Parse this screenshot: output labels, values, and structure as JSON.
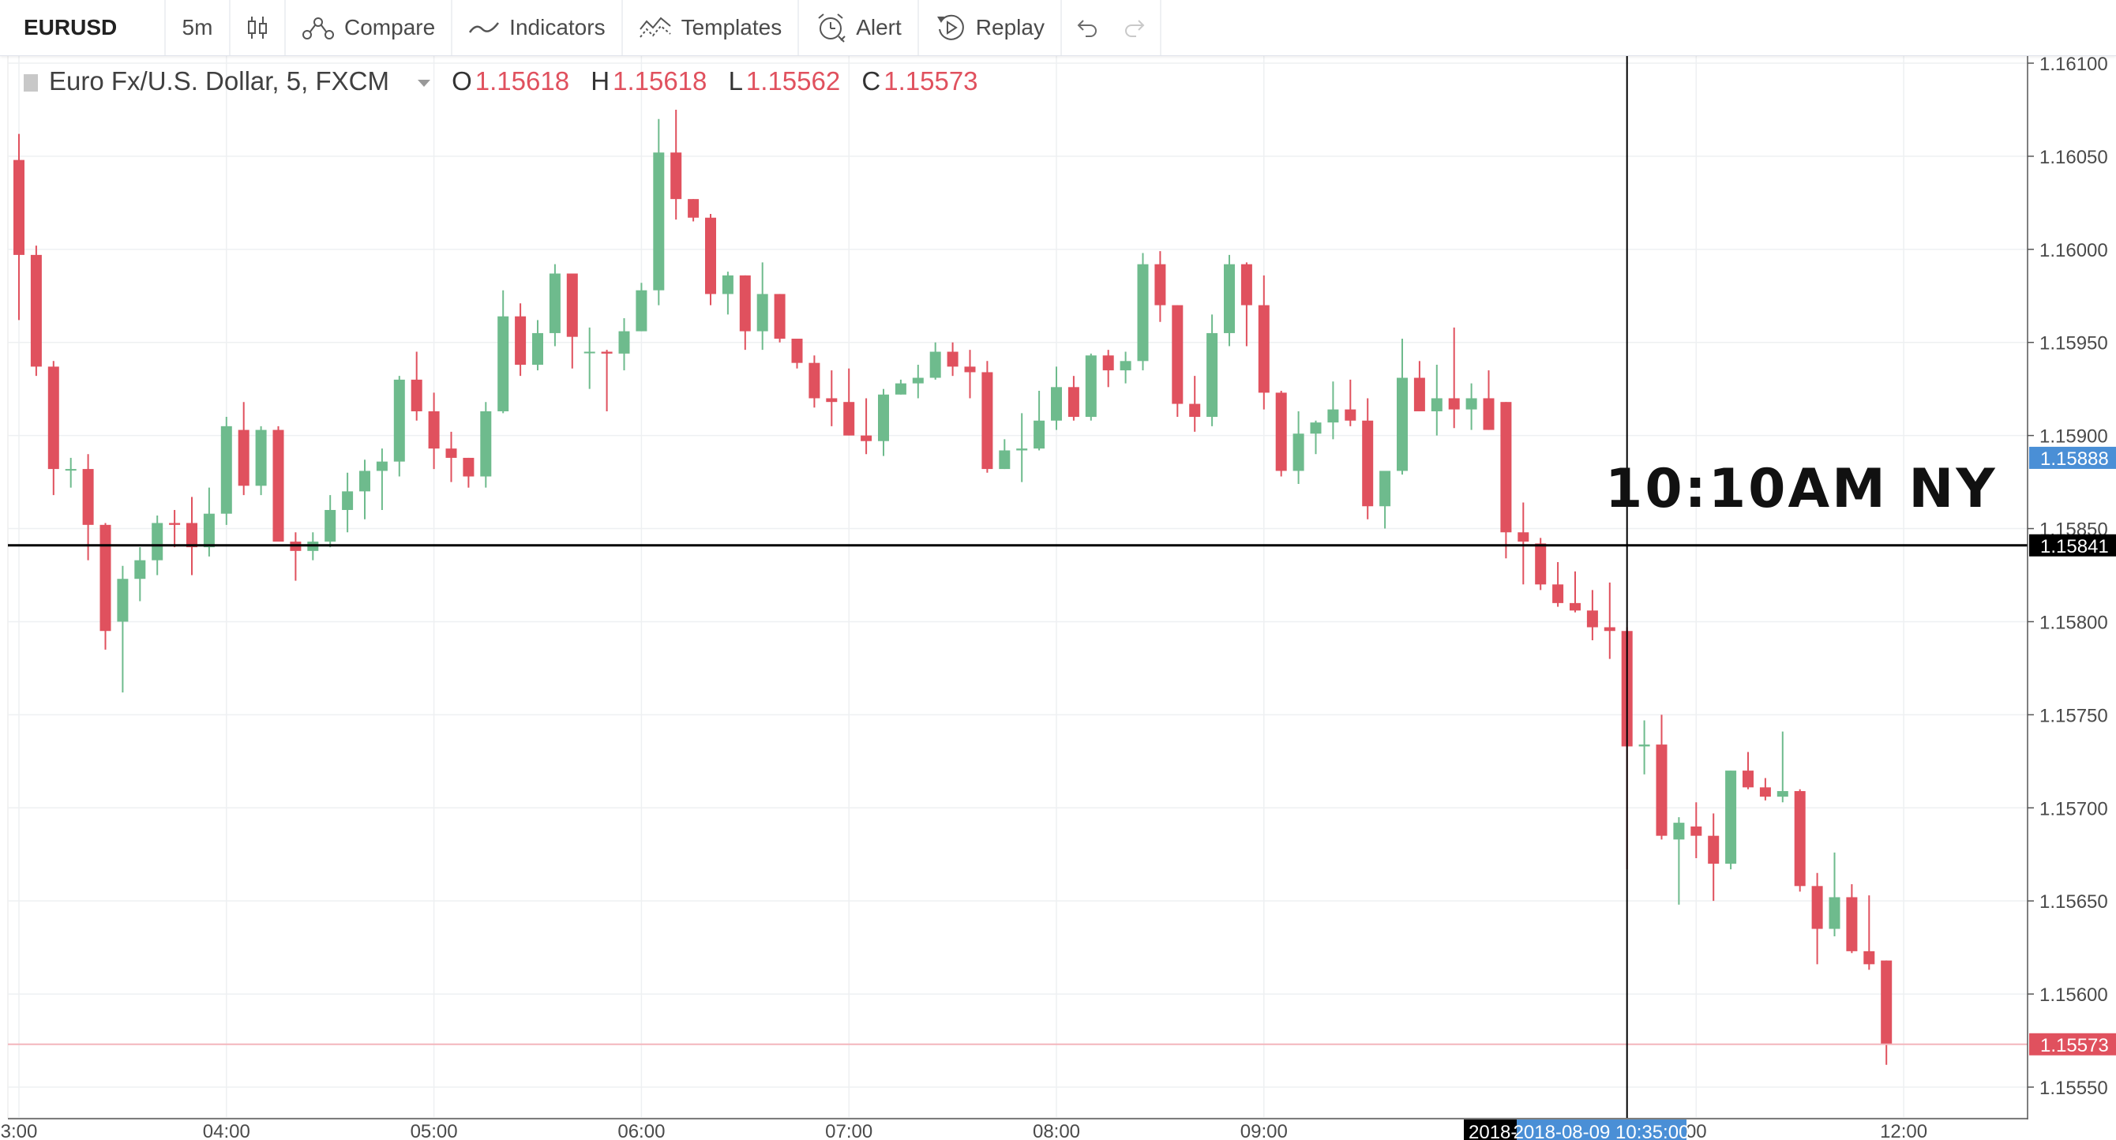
{
  "toolbar": {
    "symbol": "EURUSD",
    "interval": "5m",
    "compare_label": "Compare",
    "indicators_label": "Indicators",
    "templates_label": "Templates",
    "alert_label": "Alert",
    "replay_label": "Replay",
    "font_size": "32"
  },
  "legend": {
    "title": "Euro Fx/U.S. Dollar, 5, FXCM",
    "o_label": "O",
    "o_value": "1.15618",
    "h_label": "H",
    "h_value": "1.15618",
    "l_label": "L",
    "l_value": "1.15562",
    "c_label": "C",
    "c_value": "1.15573"
  },
  "colors": {
    "up": "#6ebb8d",
    "down": "#e0515e",
    "crosshair": "#000000",
    "last_price": "#e0515e",
    "label_blue": "#4a8fd6"
  },
  "chart_data": {
    "type": "candlestick",
    "symbol": "EURUSD",
    "ylim": [
      1.15535,
      1.1611
    ],
    "y_ticks": [
      "1.16100",
      "1.16050",
      "1.16000",
      "1.15950",
      "1.15900",
      "1.15850",
      "1.15800",
      "1.15750",
      "1.15700",
      "1.15650",
      "1.15600",
      "1.15550"
    ],
    "x_ticks": [
      {
        "label": "3:00",
        "i": 0
      },
      {
        "label": "04:00",
        "i": 12
      },
      {
        "label": "05:00",
        "i": 24
      },
      {
        "label": "06:00",
        "i": 36
      },
      {
        "label": "07:00",
        "i": 48
      },
      {
        "label": "08:00",
        "i": 60
      },
      {
        "label": "09:00",
        "i": 72
      },
      {
        "label": "00",
        "i": 97
      },
      {
        "label": "12:00",
        "i": 109
      }
    ],
    "candles": [
      [
        1.16048,
        1.16062,
        1.15962,
        1.15997
      ],
      [
        1.15997,
        1.16002,
        1.15932,
        1.15937
      ],
      [
        1.15937,
        1.1594,
        1.15868,
        1.15882
      ],
      [
        1.15882,
        1.15888,
        1.15872,
        1.15882
      ],
      [
        1.15882,
        1.1589,
        1.15833,
        1.15852
      ],
      [
        1.15852,
        1.15853,
        1.15785,
        1.15795
      ],
      [
        1.158,
        1.1583,
        1.15762,
        1.15823
      ],
      [
        1.15823,
        1.1584,
        1.15811,
        1.15833
      ],
      [
        1.15833,
        1.15857,
        1.15825,
        1.15853
      ],
      [
        1.15853,
        1.1586,
        1.1584,
        1.15852
      ],
      [
        1.15853,
        1.15867,
        1.15825,
        1.1584
      ],
      [
        1.1584,
        1.15872,
        1.15835,
        1.15858
      ],
      [
        1.15858,
        1.1591,
        1.15852,
        1.15905
      ],
      [
        1.15903,
        1.15918,
        1.15868,
        1.15873
      ],
      [
        1.15873,
        1.15905,
        1.15868,
        1.15903
      ],
      [
        1.15903,
        1.15905,
        1.15843,
        1.15843
      ],
      [
        1.15843,
        1.15848,
        1.15822,
        1.15838
      ],
      [
        1.15838,
        1.15848,
        1.15833,
        1.15843
      ],
      [
        1.15843,
        1.15868,
        1.1584,
        1.1586
      ],
      [
        1.1586,
        1.1588,
        1.15848,
        1.1587
      ],
      [
        1.1587,
        1.15887,
        1.15855,
        1.15881
      ],
      [
        1.15881,
        1.15893,
        1.1586,
        1.15886
      ],
      [
        1.15886,
        1.15932,
        1.15878,
        1.1593
      ],
      [
        1.1593,
        1.15945,
        1.15908,
        1.15913
      ],
      [
        1.15913,
        1.15923,
        1.15882,
        1.15893
      ],
      [
        1.15893,
        1.15902,
        1.15875,
        1.15888
      ],
      [
        1.15888,
        1.15888,
        1.15872,
        1.15878
      ],
      [
        1.15878,
        1.15918,
        1.15872,
        1.15913
      ],
      [
        1.15913,
        1.15978,
        1.15912,
        1.15964
      ],
      [
        1.15964,
        1.15971,
        1.15932,
        1.15938
      ],
      [
        1.15938,
        1.15962,
        1.15935,
        1.15955
      ],
      [
        1.15955,
        1.15992,
        1.15948,
        1.15987
      ],
      [
        1.15987,
        1.15987,
        1.15936,
        1.15953
      ],
      [
        1.15945,
        1.15958,
        1.15925,
        1.15945
      ],
      [
        1.15945,
        1.15946,
        1.15913,
        1.15944
      ],
      [
        1.15944,
        1.15963,
        1.15935,
        1.15956
      ],
      [
        1.15956,
        1.15982,
        1.15956,
        1.15978
      ],
      [
        1.15978,
        1.1607,
        1.1597,
        1.16052
      ],
      [
        1.16052,
        1.16075,
        1.16016,
        1.16027
      ],
      [
        1.16027,
        1.16027,
        1.16015,
        1.16017
      ],
      [
        1.16017,
        1.16019,
        1.1597,
        1.15976
      ],
      [
        1.15976,
        1.15988,
        1.15965,
        1.15986
      ],
      [
        1.15986,
        1.15986,
        1.15946,
        1.15956
      ],
      [
        1.15956,
        1.15993,
        1.15946,
        1.15976
      ],
      [
        1.15976,
        1.15976,
        1.1595,
        1.15952
      ],
      [
        1.15952,
        1.15952,
        1.15936,
        1.15939
      ],
      [
        1.15939,
        1.15943,
        1.15915,
        1.1592
      ],
      [
        1.1592,
        1.15935,
        1.15905,
        1.15918
      ],
      [
        1.15918,
        1.15936,
        1.159,
        1.159
      ],
      [
        1.159,
        1.1592,
        1.1589,
        1.15897
      ],
      [
        1.15897,
        1.15925,
        1.15889,
        1.15922
      ],
      [
        1.15922,
        1.1593,
        1.15922,
        1.15928
      ],
      [
        1.15928,
        1.15938,
        1.1592,
        1.15931
      ],
      [
        1.15931,
        1.1595,
        1.1593,
        1.15945
      ],
      [
        1.15945,
        1.1595,
        1.15932,
        1.15937
      ],
      [
        1.15937,
        1.15946,
        1.1592,
        1.15934
      ],
      [
        1.15934,
        1.1594,
        1.1588,
        1.15882
      ],
      [
        1.15882,
        1.15898,
        1.15882,
        1.15892
      ],
      [
        1.15892,
        1.15912,
        1.15875,
        1.15893
      ],
      [
        1.15893,
        1.15924,
        1.15892,
        1.15908
      ],
      [
        1.15908,
        1.15937,
        1.15903,
        1.15926
      ],
      [
        1.15926,
        1.15932,
        1.15908,
        1.1591
      ],
      [
        1.1591,
        1.15944,
        1.15908,
        1.15943
      ],
      [
        1.15943,
        1.15946,
        1.15926,
        1.15935
      ],
      [
        1.15935,
        1.15945,
        1.15928,
        1.1594
      ],
      [
        1.1594,
        1.15998,
        1.15935,
        1.15992
      ],
      [
        1.15992,
        1.15999,
        1.15961,
        1.1597
      ],
      [
        1.1597,
        1.1597,
        1.1591,
        1.15917
      ],
      [
        1.15917,
        1.15932,
        1.15902,
        1.1591
      ],
      [
        1.1591,
        1.15965,
        1.15905,
        1.15955
      ],
      [
        1.15955,
        1.15997,
        1.15948,
        1.15992
      ],
      [
        1.15992,
        1.15993,
        1.15948,
        1.1597
      ],
      [
        1.1597,
        1.15986,
        1.15914,
        1.15923
      ],
      [
        1.15923,
        1.15924,
        1.15878,
        1.15881
      ],
      [
        1.15881,
        1.15913,
        1.15874,
        1.15901
      ],
      [
        1.15901,
        1.15908,
        1.1589,
        1.15907
      ],
      [
        1.15907,
        1.15929,
        1.15898,
        1.15914
      ],
      [
        1.15914,
        1.1593,
        1.15905,
        1.15908
      ],
      [
        1.15908,
        1.1592,
        1.15855,
        1.15862
      ],
      [
        1.15862,
        1.1588,
        1.1585,
        1.15881
      ],
      [
        1.15881,
        1.15952,
        1.15879,
        1.15931
      ],
      [
        1.15931,
        1.1594,
        1.15913,
        1.15913
      ],
      [
        1.15913,
        1.15938,
        1.159,
        1.1592
      ],
      [
        1.1592,
        1.15958,
        1.15904,
        1.15914
      ],
      [
        1.15914,
        1.15928,
        1.15903,
        1.1592
      ],
      [
        1.1592,
        1.15935,
        1.15903,
        1.15903
      ],
      [
        1.15918,
        1.15918,
        1.15834,
        1.15848
      ],
      [
        1.15848,
        1.15864,
        1.1582,
        1.15843
      ],
      [
        1.15842,
        1.15845,
        1.15817,
        1.1582
      ],
      [
        1.1582,
        1.15832,
        1.15808,
        1.1581
      ],
      [
        1.1581,
        1.15827,
        1.15805,
        1.15806
      ],
      [
        1.15806,
        1.15817,
        1.1579,
        1.15797
      ],
      [
        1.15797,
        1.15821,
        1.1578,
        1.15795
      ],
      [
        1.15795,
        1.15797,
        1.15667,
        1.15733
      ],
      [
        1.15733,
        1.15747,
        1.15718,
        1.15734
      ],
      [
        1.15734,
        1.1575,
        1.15683,
        1.15685
      ],
      [
        1.15683,
        1.15695,
        1.15648,
        1.15692
      ],
      [
        1.1569,
        1.15703,
        1.15673,
        1.15685
      ],
      [
        1.15685,
        1.15697,
        1.1565,
        1.1567
      ],
      [
        1.1567,
        1.1572,
        1.15667,
        1.1572
      ],
      [
        1.1572,
        1.1573,
        1.1571,
        1.15711
      ],
      [
        1.15711,
        1.15716,
        1.15704,
        1.15706
      ],
      [
        1.15706,
        1.15741,
        1.15703,
        1.15709
      ],
      [
        1.15709,
        1.1571,
        1.15655,
        1.15658
      ],
      [
        1.15658,
        1.15665,
        1.15616,
        1.15635
      ],
      [
        1.15635,
        1.15676,
        1.15631,
        1.15652
      ],
      [
        1.15652,
        1.15659,
        1.15622,
        1.15623
      ],
      [
        1.15623,
        1.15653,
        1.15613,
        1.15616
      ],
      [
        1.15618,
        1.15618,
        1.15562,
        1.15573
      ]
    ],
    "crosshair": {
      "price": "1.15841",
      "date_label": "2018-08-09 10:35:00",
      "date_prefix": "2018-",
      "index": 93
    },
    "prev_label": {
      "price": "1.15888",
      "value": 1.15888
    },
    "last_price": {
      "price": "1.15573",
      "value": 1.15573
    },
    "annotation": "10:10AM NY"
  }
}
